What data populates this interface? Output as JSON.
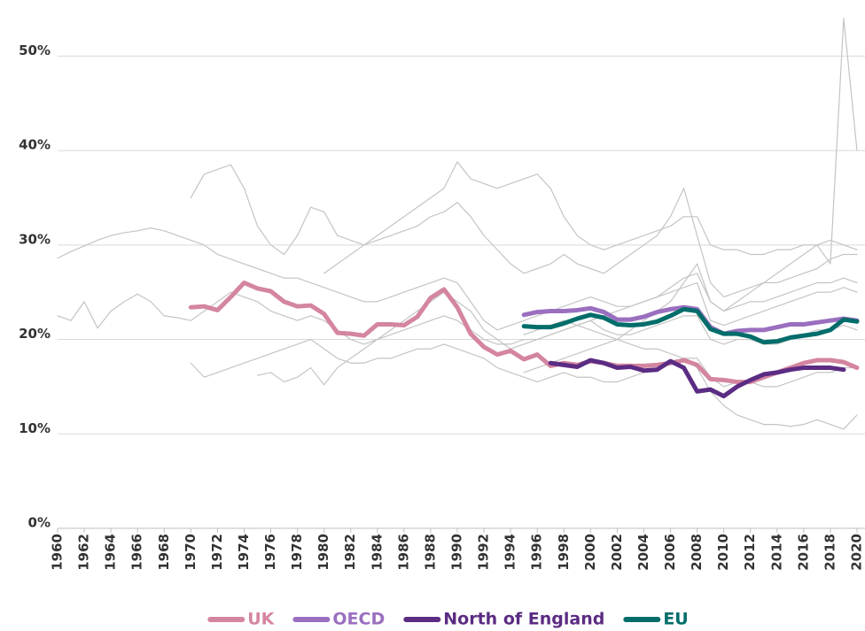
{
  "chart_data": {
    "type": "line",
    "x": [
      1960,
      1961,
      1962,
      1963,
      1964,
      1965,
      1966,
      1967,
      1968,
      1969,
      1970,
      1971,
      1972,
      1973,
      1974,
      1975,
      1976,
      1977,
      1978,
      1979,
      1980,
      1981,
      1982,
      1983,
      1984,
      1985,
      1986,
      1987,
      1988,
      1989,
      1990,
      1991,
      1992,
      1993,
      1994,
      1995,
      1996,
      1997,
      1998,
      1999,
      2000,
      2001,
      2002,
      2003,
      2004,
      2005,
      2006,
      2007,
      2008,
      2009,
      2010,
      2011,
      2012,
      2013,
      2014,
      2015,
      2016,
      2017,
      2018,
      2019,
      2020
    ],
    "xlim": [
      1960,
      2020.6
    ],
    "xticks": [
      1960,
      1962,
      1964,
      1966,
      1968,
      1970,
      1972,
      1974,
      1976,
      1978,
      1980,
      1982,
      1984,
      1986,
      1988,
      1990,
      1992,
      1994,
      1996,
      1998,
      2000,
      2002,
      2004,
      2006,
      2008,
      2010,
      2012,
      2014,
      2016,
      2018,
      2020
    ],
    "ylim": [
      0,
      55
    ],
    "yticks": [
      {
        "value": 0,
        "label": "0%"
      },
      {
        "value": 10,
        "label": "10%"
      },
      {
        "value": 20,
        "label": "20%"
      },
      {
        "value": 30,
        "label": "30%"
      },
      {
        "value": 40,
        "label": "40%"
      },
      {
        "value": 50,
        "label": "50%"
      }
    ],
    "grid": true,
    "legend": "bottom",
    "series": [
      {
        "color": "#c4c4c4",
        "values": [
          28.6,
          29.3,
          29.9,
          30.5,
          31.0,
          31.3,
          31.5,
          31.8,
          31.5,
          31.0,
          30.5,
          30.0,
          29.0,
          28.5,
          28.0,
          27.5,
          27.0,
          26.5,
          26.5,
          26.0,
          25.5,
          25.0,
          24.5,
          24.0,
          24.0,
          24.5,
          25.0,
          25.5,
          26.0,
          26.5,
          26.0,
          24.0,
          22.0,
          21.0,
          21.5,
          22.0,
          22.5,
          23.0,
          23.5,
          24.0,
          24.5,
          24.0,
          23.5,
          23.5,
          24.0,
          24.5,
          25.5,
          26.5,
          27.0,
          24.0,
          23.0,
          23.5,
          24.0,
          24.0,
          24.5,
          25.0,
          25.5,
          26.0,
          26.0,
          26.5,
          26.0
        ]
      },
      {
        "color": "#c4c4c4",
        "values": [
          22.5,
          22.0,
          24.0,
          21.2,
          23.0,
          24.0,
          24.8,
          24.0,
          22.5,
          22.3,
          22.0,
          23.0,
          24.0,
          25.0,
          24.5,
          24.0,
          23.0,
          22.5,
          22.0,
          22.5,
          22.0,
          21.0,
          20.0,
          19.5,
          20.0,
          20.5,
          21.0,
          21.5,
          22.0,
          22.5,
          22.0,
          21.0,
          20.0,
          19.5,
          19.5,
          20.0,
          20.0,
          20.5,
          21.0,
          21.5,
          22.0,
          21.0,
          20.5,
          20.5,
          21.0,
          21.5,
          22.0,
          22.5,
          22.5,
          20.0,
          19.5,
          20.0,
          20.0,
          19.5,
          19.5,
          20.0,
          20.5,
          21.0,
          21.0,
          21.5,
          21.0
        ]
      },
      {
        "color": "#c4c4c4",
        "values": [
          null,
          null,
          null,
          null,
          null,
          null,
          null,
          null,
          null,
          null,
          35.0,
          37.5,
          38.0,
          38.5,
          36.0,
          32.0,
          30.0,
          29.0,
          31.0,
          34.0,
          33.5,
          31.0,
          30.5,
          30.0,
          30.5,
          31.0,
          31.5,
          32.0,
          33.0,
          33.5,
          34.5,
          33.0,
          31.0,
          29.5,
          28.0,
          27.0,
          27.5,
          28.0,
          29.0,
          28.0,
          27.5,
          27.0,
          28.0,
          29.0,
          30.0,
          31.0,
          33.0,
          36.0,
          31.0,
          26.0,
          24.5,
          25.0,
          25.5,
          26.0,
          26.0,
          26.5,
          27.0,
          27.5,
          28.5,
          29.0,
          29.0
        ]
      },
      {
        "color": "#c4c4c4",
        "values": [
          null,
          null,
          null,
          null,
          null,
          null,
          null,
          null,
          null,
          null,
          17.5,
          16.0,
          16.5,
          17.0,
          17.5,
          18.0,
          18.5,
          19.0,
          19.5,
          20.0,
          19.0,
          18.0,
          17.5,
          17.5,
          18.0,
          18.0,
          18.5,
          19.0,
          19.0,
          19.5,
          19.0,
          18.5,
          18.0,
          17.0,
          16.5,
          16.0,
          15.5,
          16.0,
          16.5,
          16.0,
          16.0,
          15.5,
          15.5,
          16.0,
          16.5,
          17.0,
          17.5,
          18.0,
          18.0,
          16.0,
          15.0,
          15.5,
          15.5,
          15.0,
          15.0,
          15.5,
          16.0,
          16.5,
          16.5,
          17.0,
          17.0
        ]
      },
      {
        "color": "#c4c4c4",
        "values": [
          null,
          null,
          null,
          null,
          null,
          null,
          null,
          null,
          null,
          null,
          null,
          null,
          null,
          null,
          null,
          null,
          null,
          null,
          null,
          null,
          null,
          null,
          null,
          null,
          null,
          null,
          null,
          null,
          null,
          null,
          null,
          null,
          null,
          null,
          null,
          16.5,
          17.0,
          17.5,
          18.0,
          18.5,
          19.0,
          19.5,
          20.0,
          21.0,
          22.0,
          23.0,
          24.0,
          26.0,
          28.0,
          24.0,
          23.0,
          24.0,
          25.0,
          26.0,
          27.0,
          28.0,
          29.0,
          30.0,
          28.0,
          54.0,
          40.0
        ]
      },
      {
        "color": "#c4c4c4",
        "values": [
          null,
          null,
          null,
          null,
          null,
          null,
          null,
          null,
          null,
          null,
          null,
          null,
          null,
          null,
          null,
          null,
          null,
          null,
          null,
          null,
          27.0,
          28.0,
          29.0,
          30.0,
          31.0,
          32.0,
          33.0,
          34.0,
          35.0,
          36.0,
          38.8,
          37.0,
          36.5,
          36.0,
          36.5,
          37.0,
          37.5,
          36.0,
          33.0,
          31.0,
          30.0,
          29.5,
          30.0,
          30.5,
          31.0,
          31.5,
          32.0,
          33.0,
          33.0,
          30.0,
          29.5,
          29.5,
          29.0,
          29.0,
          29.5,
          29.5,
          30.0,
          30.0,
          30.5,
          30.0,
          29.5
        ]
      },
      {
        "color": "#c4c4c4",
        "values": [
          null,
          null,
          null,
          null,
          null,
          null,
          null,
          null,
          null,
          null,
          null,
          null,
          null,
          null,
          null,
          null,
          null,
          null,
          null,
          null,
          null,
          null,
          null,
          null,
          null,
          null,
          null,
          null,
          null,
          null,
          null,
          null,
          null,
          null,
          null,
          20.5,
          21.0,
          21.5,
          22.0,
          21.5,
          21.0,
          20.5,
          20.0,
          19.5,
          19.0,
          19.0,
          18.5,
          18.0,
          17.0,
          14.5,
          13.0,
          12.0,
          11.5,
          11.0,
          11.0,
          10.8,
          11.0,
          11.5,
          11.0,
          10.5,
          12.0
        ]
      },
      {
        "color": "#c4c4c4",
        "values": [
          null,
          null,
          null,
          null,
          null,
          null,
          null,
          null,
          null,
          null,
          null,
          null,
          null,
          null,
          null,
          16.2,
          16.5,
          15.5,
          16.0,
          17.0,
          15.2,
          17.0,
          18.0,
          19.0,
          20.0,
          21.0,
          22.0,
          23.0,
          24.0,
          25.0,
          24.0,
          23.0,
          21.0,
          20.0,
          19.0,
          19.5,
          20.0,
          20.5,
          21.0,
          21.5,
          22.0,
          22.5,
          23.0,
          23.5,
          24.0,
          24.5,
          25.0,
          25.5,
          26.0,
          22.0,
          21.5,
          22.0,
          22.5,
          23.0,
          23.5,
          24.0,
          24.5,
          25.0,
          25.0,
          25.5,
          25.0
        ]
      },
      {
        "name": "UK",
        "color": "#d4859f",
        "values": [
          null,
          null,
          null,
          null,
          null,
          null,
          null,
          null,
          null,
          null,
          23.4,
          23.5,
          23.1,
          24.5,
          26.0,
          25.4,
          25.1,
          24.0,
          23.5,
          23.6,
          22.7,
          20.7,
          20.6,
          20.4,
          21.6,
          21.6,
          21.5,
          22.4,
          24.4,
          25.3,
          23.4,
          20.6,
          19.2,
          18.4,
          18.8,
          17.9,
          18.4,
          17.2,
          17.5,
          17.3,
          17.7,
          17.5,
          17.2,
          17.2,
          17.2,
          17.3,
          17.5,
          17.8,
          17.3,
          15.8,
          15.7,
          15.5,
          15.5,
          16.0,
          16.5,
          17.0,
          17.5,
          17.8,
          17.8,
          17.6,
          17.0
        ]
      },
      {
        "name": "OECD",
        "color": "#9a6fbf",
        "values": [
          null,
          null,
          null,
          null,
          null,
          null,
          null,
          null,
          null,
          null,
          null,
          null,
          null,
          null,
          null,
          null,
          null,
          null,
          null,
          null,
          null,
          null,
          null,
          null,
          null,
          null,
          null,
          null,
          null,
          null,
          null,
          null,
          null,
          null,
          null,
          22.6,
          22.9,
          23.0,
          23.0,
          23.1,
          23.3,
          22.9,
          22.1,
          22.1,
          22.4,
          22.9,
          23.2,
          23.4,
          23.2,
          21.3,
          20.6,
          20.9,
          21.0,
          21.0,
          21.3,
          21.6,
          21.6,
          21.8,
          22.0,
          22.2,
          22.0
        ]
      },
      {
        "name": "North of England",
        "color": "#5b2c83",
        "values": [
          null,
          null,
          null,
          null,
          null,
          null,
          null,
          null,
          null,
          null,
          null,
          null,
          null,
          null,
          null,
          null,
          null,
          null,
          null,
          null,
          null,
          null,
          null,
          null,
          null,
          null,
          null,
          null,
          null,
          null,
          null,
          null,
          null,
          null,
          null,
          null,
          null,
          17.5,
          17.3,
          17.1,
          17.8,
          17.5,
          17.0,
          17.1,
          16.7,
          16.8,
          17.7,
          17.0,
          14.5,
          14.7,
          14.0,
          15.0,
          15.7,
          16.3,
          16.5,
          16.8,
          17.0,
          17.0,
          17.0,
          16.8,
          null
        ]
      },
      {
        "name": "EU",
        "color": "#006d6a",
        "values": [
          null,
          null,
          null,
          null,
          null,
          null,
          null,
          null,
          null,
          null,
          null,
          null,
          null,
          null,
          null,
          null,
          null,
          null,
          null,
          null,
          null,
          null,
          null,
          null,
          null,
          null,
          null,
          null,
          null,
          null,
          null,
          null,
          null,
          null,
          null,
          21.4,
          21.3,
          21.3,
          21.7,
          22.2,
          22.6,
          22.3,
          21.6,
          21.5,
          21.6,
          21.9,
          22.5,
          23.2,
          23.0,
          21.1,
          20.6,
          20.6,
          20.3,
          19.7,
          19.8,
          20.2,
          20.4,
          20.6,
          21.0,
          22.1,
          21.9
        ]
      }
    ]
  }
}
